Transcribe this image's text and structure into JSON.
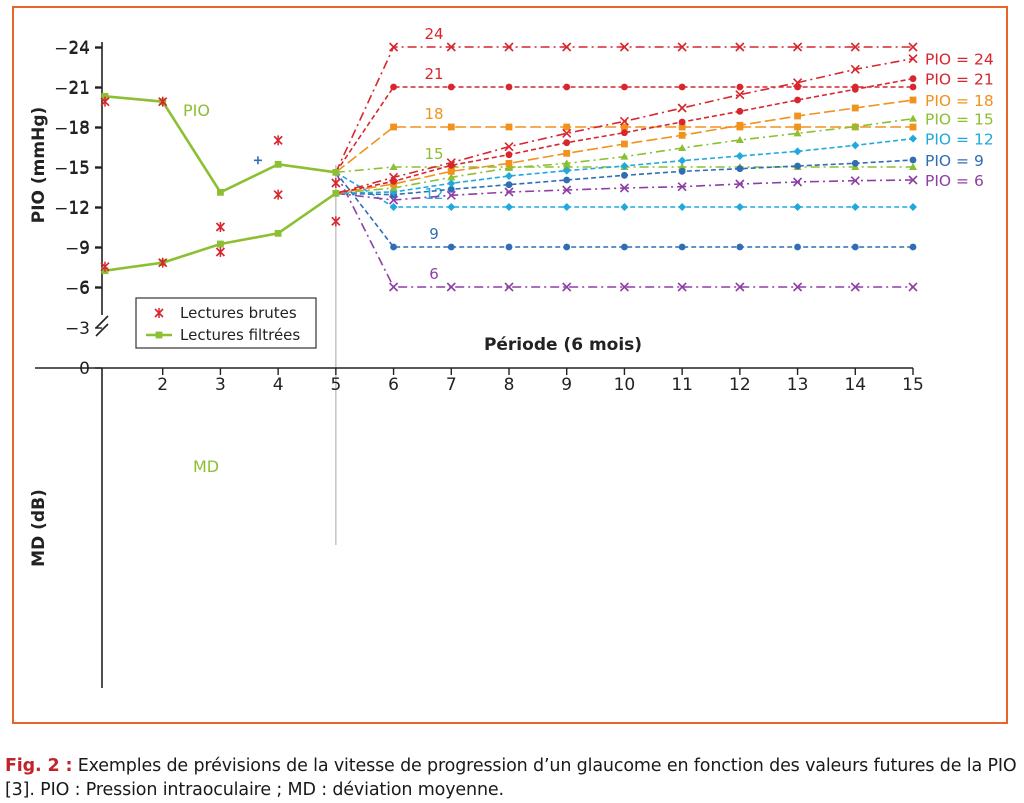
{
  "chart_data": [
    {
      "type": "line",
      "name": "pio",
      "ylabel": "PIO (mmHg)",
      "ylim": [
        4,
        25
      ],
      "yticks": [
        6,
        9,
        12,
        15,
        18,
        21,
        24
      ],
      "annotation": "PIO",
      "legend": [
        {
          "label": "Lectures brutes",
          "color": "#d7262e",
          "marker": "x"
        },
        {
          "label": "Lectures filtrées",
          "color": "#8cbf32",
          "marker": "square"
        }
      ],
      "raw_readings": [
        {
          "x": 1,
          "y": 19.9
        },
        {
          "x": 2,
          "y": 19.9
        },
        {
          "x": 3,
          "y": 10.5
        },
        {
          "x": 4,
          "y": 17.0
        },
        {
          "x": 5,
          "y": 13.8
        }
      ],
      "extra_marker": {
        "x": 3.65,
        "y": 15.5,
        "color": "#2f6db5"
      },
      "filtered": {
        "x": [
          1,
          2,
          3,
          4,
          5
        ],
        "y": [
          20.3,
          19.9,
          13.1,
          15.2,
          14.6
        ]
      },
      "scenarios": [
        {
          "label": "24",
          "value": 24,
          "color": "#d7262e",
          "dash": "dashdot",
          "marker": "x"
        },
        {
          "label": "21",
          "value": 21,
          "color": "#d7262e",
          "dash": "dash",
          "marker": "dot"
        },
        {
          "label": "18",
          "value": 18,
          "color": "#f0921c",
          "dash": "longdash",
          "marker": "square"
        },
        {
          "label": "15",
          "value": 15,
          "color": "#8cbf32",
          "dash": "dashdot",
          "marker": "triangle"
        },
        {
          "label": "12",
          "value": 12,
          "color": "#21a8de",
          "dash": "dash",
          "marker": "diamond"
        },
        {
          "label": "9",
          "value": 9,
          "color": "#2f6db5",
          "dash": "dash",
          "marker": "dot"
        },
        {
          "label": "6",
          "value": 6,
          "color": "#8e3fa5",
          "dash": "dashdot",
          "marker": "x"
        }
      ],
      "forecast_x": [
        6,
        7,
        8,
        9,
        10,
        11,
        12,
        13,
        14,
        15
      ]
    },
    {
      "type": "line",
      "name": "md",
      "xlabel": "Période (6 mois)",
      "xticks": [
        2,
        3,
        4,
        5,
        6,
        7,
        8,
        9,
        10,
        11,
        12,
        13,
        14,
        15
      ],
      "xlim": [
        1,
        15
      ],
      "ylabel": "MD (dB)",
      "ylim": [
        -24,
        0
      ],
      "yticks": [
        0,
        -3,
        -6,
        -9,
        -12,
        -15,
        -18,
        -21,
        -24
      ],
      "annotation": "MD",
      "raw_readings": [
        {
          "x": 1,
          "y": -7.6
        },
        {
          "x": 2,
          "y": -7.9
        },
        {
          "x": 3,
          "y": -8.7
        },
        {
          "x": 4,
          "y": -13.0
        },
        {
          "x": 5,
          "y": -11.0
        }
      ],
      "filtered": {
        "x": [
          1,
          2,
          3,
          4,
          5
        ],
        "y": [
          -7.3,
          -7.9,
          -9.3,
          -10.1,
          -13.1
        ]
      },
      "forecast_x": [
        5,
        6,
        7,
        8,
        9,
        10,
        11,
        12,
        13,
        14,
        15
      ],
      "series": [
        {
          "name": "PIO = 6",
          "color": "#8e3fa5",
          "dash": "dashdot",
          "marker": "x",
          "values": [
            -13.1,
            -12.6,
            -12.95,
            -13.2,
            -13.35,
            -13.5,
            -13.6,
            -13.8,
            -13.95,
            -14.05,
            -14.1
          ]
        },
        {
          "name": "PIO = 9",
          "color": "#2f6db5",
          "dash": "dash",
          "marker": "dot",
          "values": [
            -13.1,
            -13.0,
            -13.4,
            -13.75,
            -14.1,
            -14.45,
            -14.75,
            -14.95,
            -15.15,
            -15.35,
            -15.6
          ]
        },
        {
          "name": "PIO = 12",
          "color": "#21a8de",
          "dash": "dash",
          "marker": "diamond",
          "values": [
            -13.1,
            -13.2,
            -13.85,
            -14.4,
            -14.8,
            -15.15,
            -15.55,
            -15.9,
            -16.25,
            -16.7,
            -17.2
          ]
        },
        {
          "name": "PIO = 15",
          "color": "#8cbf32",
          "dash": "dashdot",
          "marker": "triangle",
          "values": [
            -13.1,
            -13.5,
            -14.3,
            -15.0,
            -15.35,
            -15.85,
            -16.5,
            -17.1,
            -17.6,
            -18.1,
            -18.7
          ]
        },
        {
          "name": "PIO = 18",
          "color": "#f0921c",
          "dash": "longdash",
          "marker": "square",
          "values": [
            -13.1,
            -13.8,
            -14.75,
            -15.35,
            -16.1,
            -16.8,
            -17.45,
            -18.2,
            -18.9,
            -19.5,
            -20.1
          ]
        },
        {
          "name": "PIO = 21",
          "color": "#d7262e",
          "dash": "dash",
          "marker": "dot",
          "values": [
            -13.1,
            -14.0,
            -15.2,
            -16.0,
            -16.9,
            -17.65,
            -18.45,
            -19.25,
            -20.1,
            -20.9,
            -21.7
          ]
        },
        {
          "name": "PIO = 24",
          "color": "#d7262e",
          "dash": "dashdot",
          "marker": "x",
          "values": [
            -13.1,
            -14.3,
            -15.4,
            -16.6,
            -17.6,
            -18.5,
            -19.5,
            -20.5,
            -21.4,
            -22.4,
            -23.2
          ]
        }
      ]
    }
  ],
  "caption": {
    "label": "Fig. 2 :",
    "text": " Exemples de prévisions de la vitesse de progression d’un glaucome en fonction des valeurs futures de la PIO [3]. PIO : Pression intraoculaire ; MD : déviation moyenne."
  }
}
